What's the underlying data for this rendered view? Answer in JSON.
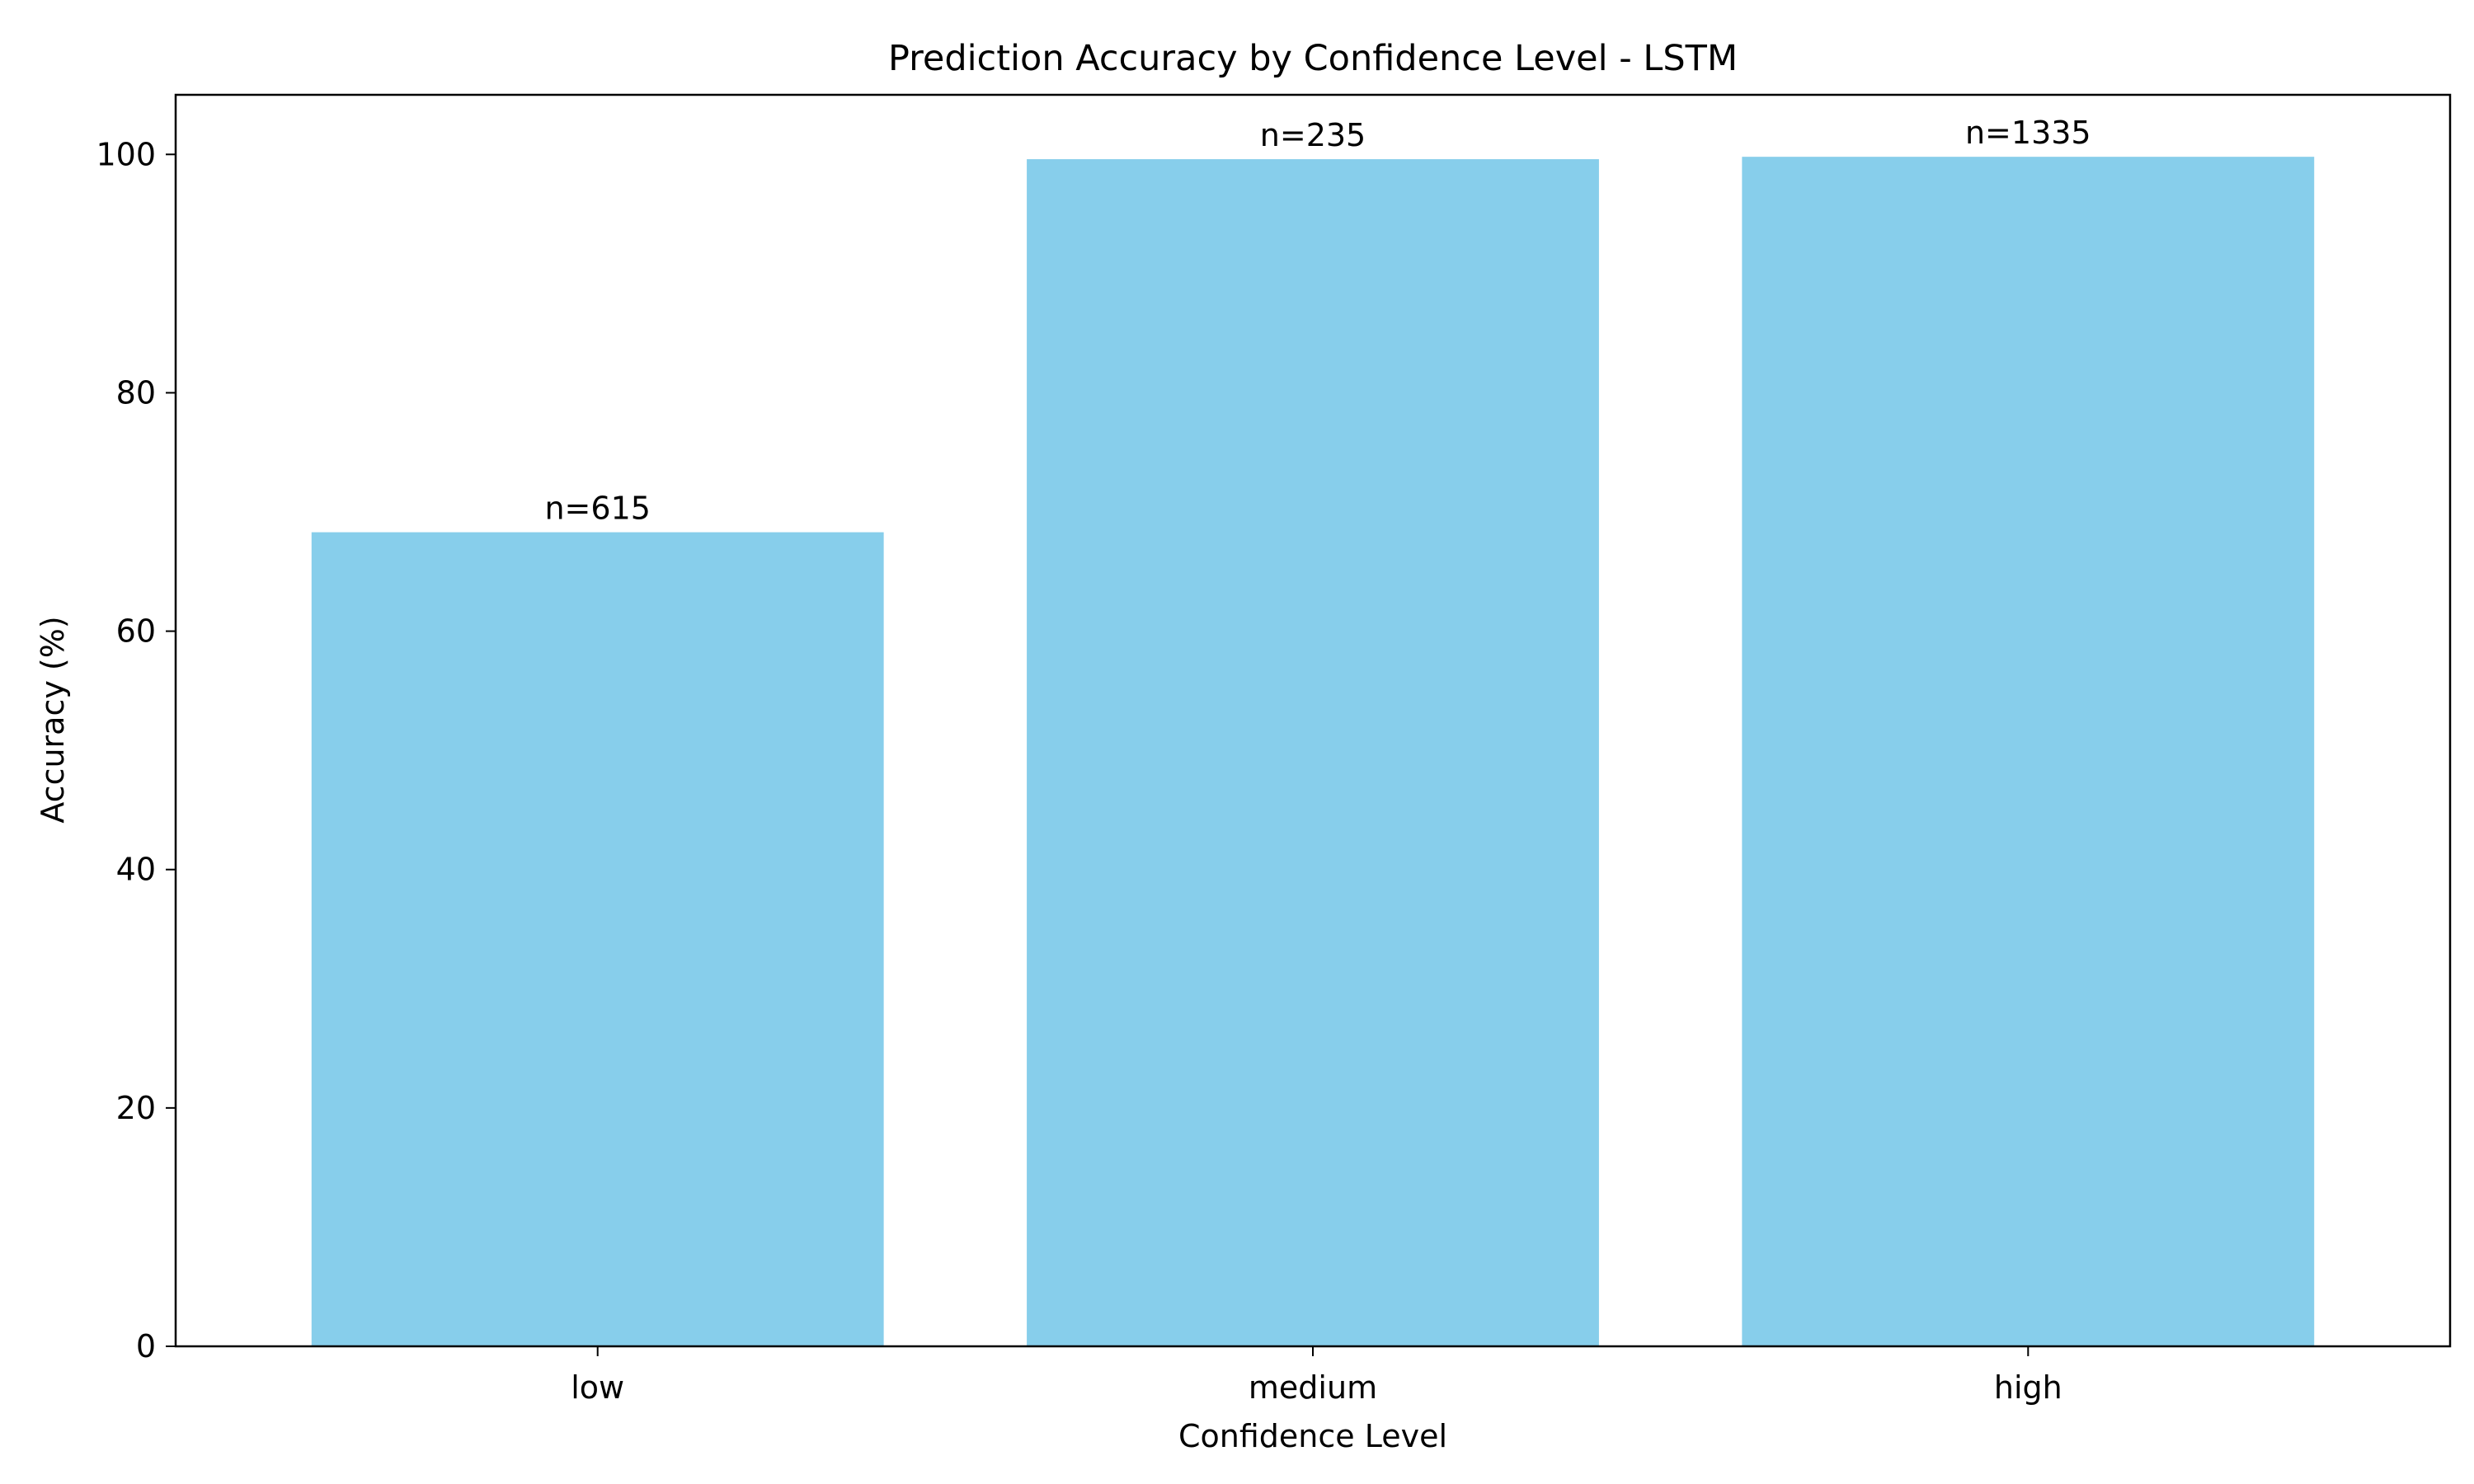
{
  "chart_data": {
    "type": "bar",
    "title": "Prediction Accuracy by Confidence Level - LSTM",
    "xlabel": "Confidence Level",
    "ylabel": "Accuracy (%)",
    "categories": [
      "low",
      "medium",
      "high"
    ],
    "values": [
      68.3,
      99.6,
      99.8
    ],
    "data_labels": [
      "n=615",
      "n=235",
      "n=1335"
    ],
    "ylim": [
      0,
      105
    ],
    "yticks": [
      0,
      20,
      40,
      60,
      80,
      100
    ],
    "grid": false,
    "legend": "none",
    "bar_color": "#87CEEB"
  }
}
